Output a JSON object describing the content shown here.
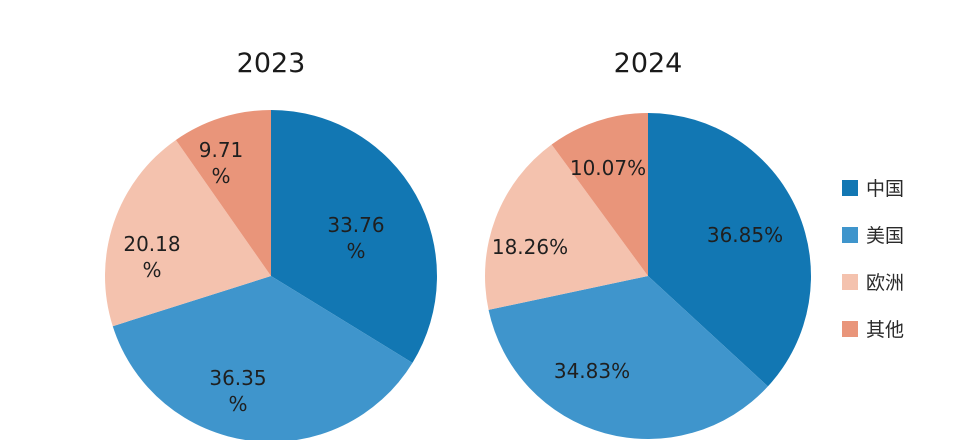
{
  "chart_data": {
    "type": "pie",
    "categories": [
      "中国",
      "美国",
      "欧洲",
      "其他"
    ],
    "colors": {
      "中国": "#1277b3",
      "美国": "#3f95cc",
      "欧洲": "#f4c2ae",
      "其他": "#e9957a"
    },
    "charts": [
      {
        "title": "2023",
        "values": [
          33.76,
          36.35,
          20.18,
          9.71
        ],
        "labels": [
          [
            "33.76",
            "%"
          ],
          [
            "36.35",
            "%"
          ],
          [
            "20.18",
            "%"
          ],
          [
            "9.71",
            "%"
          ]
        ]
      },
      {
        "title": "2024",
        "values": [
          36.85,
          34.83,
          18.26,
          10.07
        ],
        "labels": [
          [
            "36.85%"
          ],
          [
            "34.83%"
          ],
          [
            "18.26%"
          ],
          [
            "10.07%"
          ]
        ]
      }
    ],
    "legend": {
      "position": "right",
      "entries": [
        "中国",
        "美国",
        "欧洲",
        "其他"
      ]
    }
  }
}
